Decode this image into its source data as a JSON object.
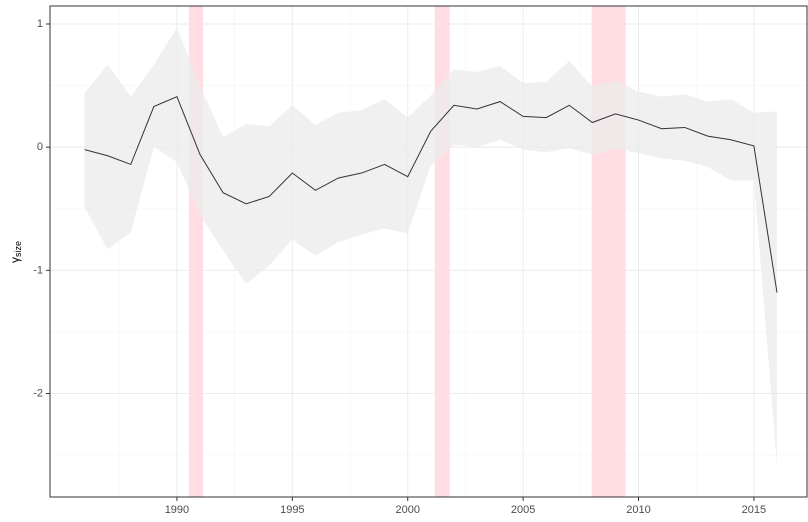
{
  "chart_data": {
    "type": "line",
    "ylabel": "γ",
    "ylabel_subscript": "size",
    "x": [
      1986,
      1987,
      1988,
      1989,
      1990,
      1991,
      1992,
      1993,
      1994,
      1995,
      1996,
      1997,
      1998,
      1999,
      2000,
      2001,
      2002,
      2003,
      2004,
      2005,
      2006,
      2007,
      2008,
      2009,
      2010,
      2011,
      2012,
      2013,
      2014,
      2015,
      2016
    ],
    "values": [
      -0.02,
      -0.07,
      -0.14,
      0.33,
      0.41,
      -0.06,
      -0.37,
      -0.46,
      -0.4,
      -0.21,
      -0.35,
      -0.25,
      -0.21,
      -0.14,
      -0.24,
      0.13,
      0.34,
      0.31,
      0.37,
      0.25,
      0.24,
      0.34,
      0.2,
      0.27,
      0.22,
      0.15,
      0.16,
      0.09,
      0.06,
      0.01,
      -1.18
    ],
    "upper": [
      0.44,
      0.67,
      0.41,
      0.67,
      0.97,
      0.5,
      0.08,
      0.19,
      0.17,
      0.34,
      0.18,
      0.28,
      0.3,
      0.39,
      0.24,
      0.42,
      0.63,
      0.61,
      0.66,
      0.52,
      0.53,
      0.7,
      0.49,
      0.54,
      0.45,
      0.41,
      0.43,
      0.37,
      0.39,
      0.28,
      0.29
    ],
    "lower": [
      -0.49,
      -0.83,
      -0.69,
      0.0,
      -0.12,
      -0.55,
      -0.84,
      -1.11,
      -0.96,
      -0.75,
      -0.88,
      -0.77,
      -0.71,
      -0.66,
      -0.7,
      -0.15,
      0.02,
      0.0,
      0.06,
      -0.02,
      -0.04,
      -0.01,
      -0.06,
      -0.01,
      -0.05,
      -0.09,
      -0.11,
      -0.16,
      -0.27,
      -0.27,
      -2.58
    ],
    "color": "#333333",
    "band_color": "#ebebeb",
    "shaded": [
      [
        1990.52,
        1991.13
      ],
      [
        2001.17,
        2001.82
      ],
      [
        2007.97,
        2009.44
      ]
    ],
    "shade_color": "#ffdde3",
    "xlim": [
      1984.5,
      2017.3
    ],
    "ylim": [
      -2.84,
      1.146
    ],
    "xticks": [
      1990,
      1995,
      2000,
      2005,
      2010,
      2015
    ],
    "yticks": [
      -2,
      -1,
      0,
      1
    ],
    "grid": true
  }
}
